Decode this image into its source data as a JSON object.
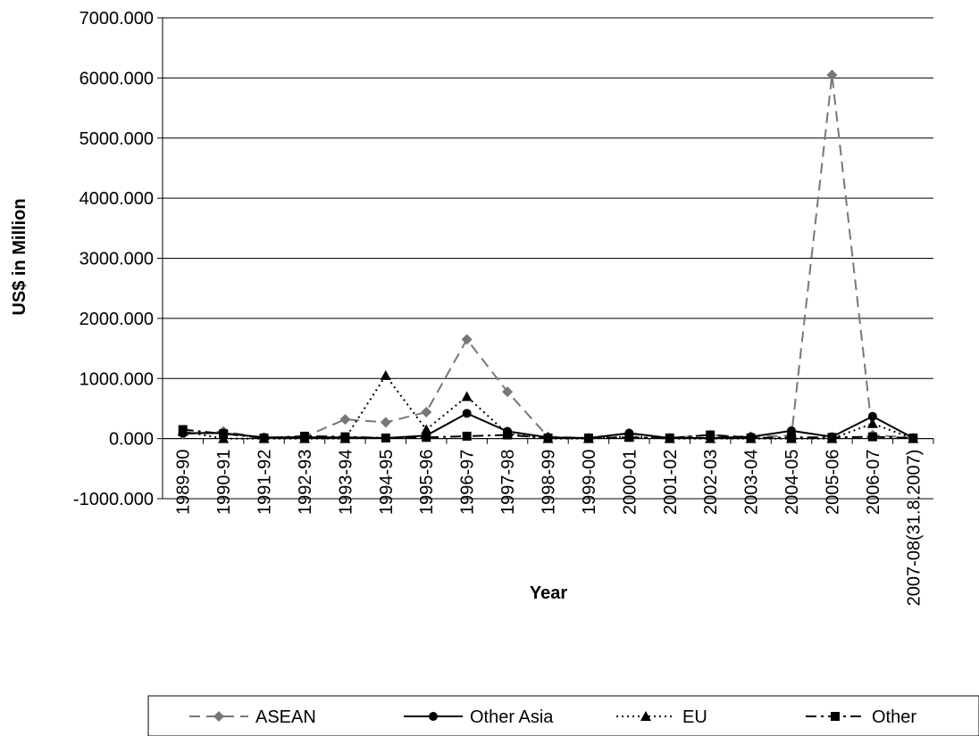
{
  "chart_data": {
    "type": "line",
    "ylabel": "US$ in Million",
    "xlabel": "Year",
    "ylim": [
      -1000,
      7000
    ],
    "yticks": [
      "-1000.000",
      "0.000",
      "1000.000",
      "2000.000",
      "3000.000",
      "4000.000",
      "5000.000",
      "6000.000",
      "7000.000"
    ],
    "ytick_values": [
      -1000,
      0,
      1000,
      2000,
      3000,
      4000,
      5000,
      6000,
      7000
    ],
    "grid": true,
    "legend_position": "bottom",
    "categories": [
      "1989-90",
      "1990-91",
      "1991-92",
      "1992-93",
      "1993-94",
      "1994-95",
      "1995-96",
      "1996-97",
      "1997-98",
      "1998-99",
      "1999-00",
      "2000-01",
      "2001-02",
      "2002-03",
      "2003-04",
      "2004-05",
      "2005-06",
      "2006-07",
      "2007-08(31.8.2007)"
    ],
    "series": [
      {
        "name": "ASEAN",
        "marker": "diamond",
        "dash": "long-dash",
        "color": "#777777",
        "values": [
          70,
          120,
          10,
          30,
          320,
          270,
          440,
          1650,
          780,
          30,
          10,
          80,
          10,
          60,
          30,
          50,
          6050,
          60,
          10
        ]
      },
      {
        "name": "Other Asia",
        "marker": "circle",
        "dash": "solid",
        "color": "#000000",
        "values": [
          90,
          90,
          20,
          20,
          20,
          10,
          50,
          420,
          120,
          20,
          10,
          90,
          10,
          10,
          30,
          130,
          30,
          370,
          10
        ]
      },
      {
        "name": "EU",
        "marker": "triangle",
        "dash": "dotted",
        "color": "#000000",
        "values": [
          120,
          0,
          0,
          0,
          0,
          1050,
          150,
          700,
          80,
          0,
          0,
          30,
          0,
          0,
          0,
          0,
          0,
          250,
          0
        ]
      },
      {
        "name": "Other",
        "marker": "square",
        "dash": "dash-dot",
        "color": "#000000",
        "values": [
          150,
          80,
          10,
          40,
          30,
          10,
          20,
          40,
          60,
          10,
          10,
          20,
          10,
          60,
          10,
          20,
          20,
          30,
          10
        ]
      }
    ]
  }
}
